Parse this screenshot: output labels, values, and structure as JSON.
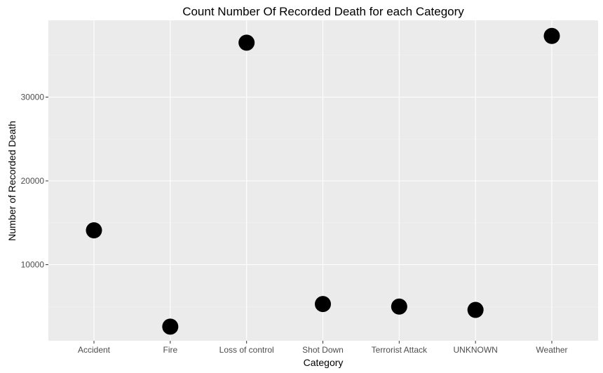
{
  "chart_data": {
    "type": "scatter",
    "title": "Count Number Of Recorded Death for each Category",
    "xlabel": "Category",
    "ylabel": "Number of Recorded Death",
    "categories": [
      "Accident",
      "Fire",
      "Loss of control",
      "Shot Down",
      "Terrorist Attack",
      "UNKNOWN",
      "Weather"
    ],
    "values": [
      14100,
      2600,
      36500,
      5300,
      5000,
      4600,
      37300
    ],
    "yticks": [
      10000,
      20000,
      30000
    ],
    "ytick_labels": [
      "10000",
      "20000",
      "30000"
    ],
    "ylim": [
      1000,
      39000
    ],
    "grid": true,
    "legend": "none",
    "colors": {
      "panel_background": "#ebebeb",
      "gridlines": "#ffffff",
      "points": "#000000"
    }
  }
}
